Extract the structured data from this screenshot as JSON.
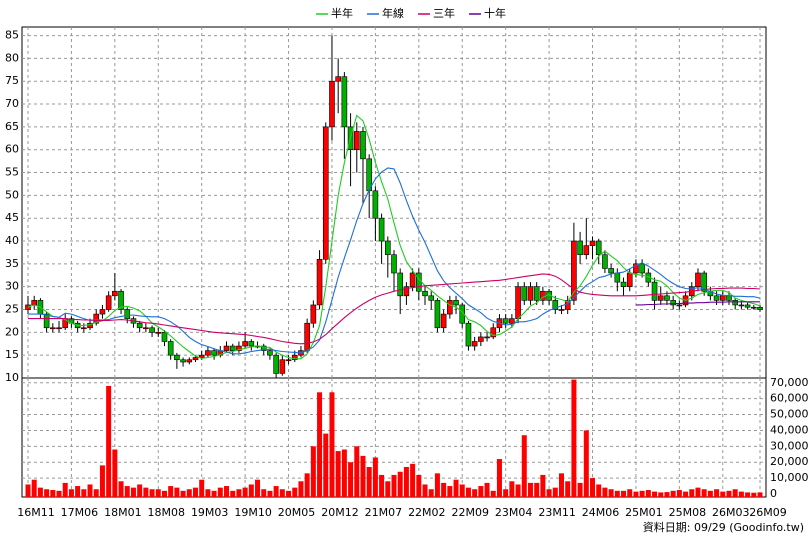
{
  "chart_data": {
    "type": "candlestick",
    "categories": [
      "16M11",
      null,
      null,
      null,
      null,
      null,
      null,
      "17M06",
      null,
      null,
      null,
      null,
      null,
      null,
      "18M01",
      null,
      null,
      null,
      null,
      null,
      null,
      "18M08",
      null,
      null,
      null,
      null,
      null,
      null,
      "19M03",
      null,
      null,
      null,
      null,
      null,
      null,
      "19M10",
      null,
      null,
      null,
      null,
      null,
      null,
      "20M05",
      null,
      null,
      null,
      null,
      null,
      null,
      "20M12",
      null,
      null,
      null,
      null,
      null,
      null,
      "21M07",
      null,
      null,
      null,
      null,
      null,
      null,
      "22M02",
      null,
      null,
      null,
      null,
      null,
      null,
      "22M09",
      null,
      null,
      null,
      null,
      null,
      null,
      "23M04",
      null,
      null,
      null,
      null,
      null,
      null,
      "23M11",
      null,
      null,
      null,
      null,
      null,
      null,
      "24M06",
      null,
      null,
      null,
      null,
      null,
      null,
      "25M01",
      null,
      null,
      null,
      null,
      null,
      null,
      "25M08",
      null,
      null,
      null,
      null,
      null,
      null,
      "26M03",
      null,
      null,
      null,
      null,
      null,
      "26M09"
    ],
    "ohlc": [
      [
        25,
        28,
        24,
        26
      ],
      [
        26,
        28,
        25,
        27
      ],
      [
        27,
        27.5,
        23,
        24
      ],
      [
        24,
        24.5,
        20,
        21
      ],
      [
        21,
        22,
        20,
        21
      ],
      [
        21,
        22.5,
        20,
        21
      ],
      [
        21,
        24,
        20.5,
        23
      ],
      [
        23,
        23.5,
        21,
        22
      ],
      [
        22,
        22.5,
        20,
        21
      ],
      [
        21,
        22,
        20,
        21
      ],
      [
        21,
        23,
        20.5,
        22
      ],
      [
        22,
        25,
        21.5,
        24
      ],
      [
        24,
        26,
        23,
        25
      ],
      [
        25,
        29,
        24.5,
        28
      ],
      [
        28,
        33,
        27,
        29
      ],
      [
        29,
        29.5,
        24,
        25
      ],
      [
        25,
        25.5,
        22,
        23
      ],
      [
        23,
        23.5,
        21,
        22
      ],
      [
        22,
        22.5,
        20,
        21
      ],
      [
        21,
        22,
        20,
        21
      ],
      [
        21,
        21.5,
        19,
        20
      ],
      [
        20,
        21,
        19,
        20
      ],
      [
        20,
        20.5,
        17,
        18
      ],
      [
        18,
        18.5,
        14,
        15
      ],
      [
        15,
        15.5,
        12,
        14
      ],
      [
        14,
        14.5,
        12.5,
        13.5
      ],
      [
        13.5,
        14.5,
        13,
        14
      ],
      [
        14,
        15,
        13.5,
        14.5
      ],
      [
        14.5,
        16,
        14,
        15
      ],
      [
        15,
        17,
        14.5,
        16
      ],
      [
        16,
        16.5,
        14,
        15
      ],
      [
        15,
        17,
        14.5,
        16
      ],
      [
        16,
        18,
        15.5,
        17
      ],
      [
        17,
        17.5,
        15,
        16
      ],
      [
        16,
        18,
        15.5,
        17
      ],
      [
        17,
        20,
        16.5,
        18
      ],
      [
        18,
        18.5,
        16,
        17
      ],
      [
        17,
        18,
        16.5,
        17
      ],
      [
        17,
        17.5,
        15,
        16
      ],
      [
        16,
        16.5,
        14,
        15
      ],
      [
        15,
        15.5,
        10,
        11
      ],
      [
        11,
        15,
        10.5,
        14
      ],
      [
        14,
        15,
        13,
        14
      ],
      [
        14,
        16,
        13.5,
        15
      ],
      [
        15,
        17,
        14.5,
        16
      ],
      [
        16,
        23,
        15.5,
        22
      ],
      [
        22,
        27,
        21,
        26
      ],
      [
        26,
        38,
        25,
        36
      ],
      [
        36,
        66,
        35,
        65
      ],
      [
        65,
        85,
        62,
        75
      ],
      [
        75,
        80,
        68,
        76
      ],
      [
        76,
        77,
        58,
        65
      ],
      [
        65,
        68,
        52,
        60
      ],
      [
        60,
        66,
        55,
        64
      ],
      [
        64,
        65,
        48,
        58
      ],
      [
        58,
        59,
        45,
        51
      ],
      [
        51,
        52,
        40,
        45
      ],
      [
        45,
        46,
        35,
        40
      ],
      [
        40,
        41,
        32,
        37
      ],
      [
        37,
        38,
        29,
        33
      ],
      [
        33,
        34,
        24,
        28
      ],
      [
        28,
        31,
        26,
        30
      ],
      [
        30,
        34,
        29,
        33
      ],
      [
        33,
        34,
        27,
        29
      ],
      [
        29,
        30,
        26,
        28
      ],
      [
        28,
        29,
        25,
        27
      ],
      [
        27,
        27.5,
        20,
        21
      ],
      [
        21,
        25,
        20,
        24
      ],
      [
        24,
        28,
        23,
        27
      ],
      [
        27,
        28,
        24,
        26
      ],
      [
        26,
        26.5,
        21,
        22
      ],
      [
        22,
        22.5,
        16,
        17
      ],
      [
        17,
        19,
        16,
        18
      ],
      [
        18,
        20,
        17,
        19
      ],
      [
        19,
        20,
        18,
        19
      ],
      [
        19,
        22,
        18.5,
        21
      ],
      [
        21,
        24,
        20,
        23
      ],
      [
        23,
        24,
        21,
        22
      ],
      [
        22,
        24,
        21,
        23
      ],
      [
        23,
        31,
        22,
        30
      ],
      [
        30,
        31,
        26,
        27
      ],
      [
        27,
        31,
        26,
        30
      ],
      [
        30,
        31,
        26,
        27
      ],
      [
        27,
        30,
        26,
        29
      ],
      [
        29,
        29.5,
        26,
        27
      ],
      [
        27,
        28,
        24,
        25
      ],
      [
        25,
        26,
        24,
        25
      ],
      [
        25,
        28,
        24,
        27
      ],
      [
        27,
        44,
        26,
        40
      ],
      [
        40,
        42,
        35,
        37
      ],
      [
        37,
        45,
        36,
        39
      ],
      [
        39,
        41,
        36,
        40
      ],
      [
        40,
        40.5,
        35,
        37
      ],
      [
        37,
        38,
        33,
        34
      ],
      [
        34,
        35,
        32,
        33
      ],
      [
        33,
        34,
        29,
        31
      ],
      [
        31,
        32,
        28,
        30
      ],
      [
        30,
        34,
        29,
        33
      ],
      [
        33,
        36,
        32,
        35
      ],
      [
        35,
        36,
        32,
        33
      ],
      [
        33,
        34,
        30,
        31
      ],
      [
        31,
        32,
        25,
        27
      ],
      [
        27,
        30,
        26,
        28
      ],
      [
        28,
        29,
        26,
        27
      ],
      [
        27,
        28,
        25,
        26
      ],
      [
        26,
        27,
        25,
        26
      ],
      [
        26,
        29,
        25.5,
        28
      ],
      [
        28,
        31,
        27,
        30
      ],
      [
        30,
        34,
        29,
        33
      ],
      [
        33,
        33.5,
        28,
        29
      ],
      [
        29,
        30,
        27,
        28
      ],
      [
        28,
        29,
        26,
        27
      ],
      [
        27,
        29,
        26,
        28
      ],
      [
        28,
        29,
        26,
        27
      ],
      [
        27,
        27.5,
        25,
        26
      ],
      [
        26,
        27,
        25,
        26
      ],
      [
        26,
        26.5,
        25,
        25.5
      ],
      [
        25.5,
        26,
        25,
        25.5
      ],
      [
        25.5,
        26,
        24.5,
        25
      ]
    ],
    "up_color": "#ff0000",
    "down_color": "#00b000",
    "ylim": [
      10,
      86
    ],
    "yticks": [
      10,
      15,
      20,
      25,
      30,
      35,
      40,
      45,
      50,
      55,
      60,
      65,
      70,
      75,
      80,
      85
    ],
    "grid": true,
    "series": [
      {
        "name": "半年",
        "color": "#22cc22",
        "values": [
          25.5,
          26,
          25.5,
          24.5,
          23.5,
          23.3,
          22.8,
          22,
          21.5,
          21.5,
          21.7,
          22.2,
          22.5,
          23.5,
          24.8,
          25.5,
          25.7,
          25.3,
          24.7,
          23.5,
          22,
          21.2,
          20.3,
          19.2,
          18,
          16.8,
          15.8,
          14.8,
          14.3,
          14.5,
          14.7,
          15.1,
          15.6,
          15.8,
          16.2,
          16.5,
          16.8,
          17,
          16.8,
          16.7,
          15.7,
          15,
          14.5,
          14.2,
          14.2,
          15.3,
          17.8,
          21.5,
          30,
          40,
          50,
          57.2,
          62.8,
          67.5,
          66.3,
          62.3,
          57.2,
          53,
          49.2,
          44,
          39,
          35.5,
          33.5,
          31.7,
          30.2,
          29.2,
          28,
          27,
          26,
          25.5,
          24.5,
          22.8,
          22.3,
          21.5,
          20.2,
          19.3,
          19.5,
          20.3,
          21.2,
          23,
          24.3,
          25.8,
          26.5,
          27.7,
          28.3,
          27.5,
          27.2,
          26.7,
          28.8,
          30.2,
          32.2,
          34.7,
          36.7,
          37.8,
          36.7,
          35.7,
          34.2,
          33,
          32.7,
          32.5,
          32.2,
          31.5,
          31.2,
          30.2,
          28.7,
          27.5,
          27,
          27.5,
          28.3,
          28.7,
          29,
          29.2,
          29.2,
          28.7,
          27.5,
          27,
          26.6,
          26.3,
          25.8
        ]
      },
      {
        "name": "年線",
        "color": "#1e6fd9",
        "values": [
          24,
          24,
          24,
          23.8,
          23.5,
          23.3,
          24.2,
          24,
          23.5,
          23,
          22.6,
          22.8,
          22.7,
          22.8,
          23.2,
          23.5,
          23.7,
          23.8,
          23.6,
          23.5,
          23.4,
          23.4,
          23,
          22.3,
          21.4,
          20.2,
          18.9,
          18,
          17.3,
          16.9,
          16.4,
          16,
          15.7,
          15.3,
          15.3,
          15.5,
          15.8,
          16,
          16.2,
          16.3,
          16,
          15.8,
          15.7,
          15.6,
          15.5,
          16,
          16.8,
          18.3,
          22.3,
          27.1,
          32.1,
          36.3,
          40.3,
          44.5,
          48.2,
          51.2,
          53.6,
          55.1,
          56,
          55.8,
          52.7,
          48.9,
          45.4,
          42.4,
          39.7,
          36.6,
          33.5,
          31.3,
          29.8,
          28.6,
          27.4,
          26,
          25.2,
          24.3,
          23.1,
          22.4,
          22,
          21.6,
          21.8,
          22.3,
          22.3,
          22.6,
          23,
          24,
          24.8,
          25.3,
          25.8,
          26.3,
          27.7,
          29,
          30.3,
          31.1,
          32,
          32.3,
          32.8,
          33,
          33.2,
          33.9,
          34.7,
          35.2,
          34.5,
          33.6,
          32.7,
          31.6,
          30.7,
          30,
          29.6,
          29.5,
          29.8,
          29.5,
          28.9,
          28.4,
          28.1,
          28.1,
          27.9,
          27.9,
          27.8,
          27.8,
          27.5
        ]
      },
      {
        "name": "三年",
        "color": "#cc0066",
        "values": [
          23,
          23,
          23,
          23,
          23,
          23,
          23,
          22.8,
          22.8,
          22.7,
          22.7,
          22.6,
          22.6,
          22.6,
          22.7,
          22.8,
          22.7,
          22.5,
          22.3,
          22.1,
          22,
          21.8,
          21.6,
          21.4,
          21.2,
          21,
          20.8,
          20.6,
          20.4,
          20.2,
          20,
          19.9,
          19.8,
          19.7,
          19.6,
          19.5,
          19.3,
          19.1,
          18.9,
          18.6,
          18.3,
          18,
          17.8,
          17.6,
          17.5,
          17.6,
          17.9,
          18.5,
          19.5,
          20.8,
          22,
          23.2,
          24.3,
          25.3,
          26.2,
          27,
          27.7,
          28.2,
          28.6,
          29,
          29.3,
          29.6,
          29.8,
          30,
          30.2,
          30.3,
          30.4,
          30.5,
          30.6,
          30.7,
          30.8,
          30.9,
          31,
          31.1,
          31.2,
          31.3,
          31.4,
          31.6,
          31.8,
          32,
          32.2,
          32.4,
          32.6,
          32.8,
          32.7,
          32.3,
          31.5,
          30.5,
          29.5,
          28.8,
          28.5,
          28.3,
          28.2,
          28.1,
          28,
          28,
          28,
          28,
          28,
          28.1,
          28.2,
          28.3,
          28.4,
          28.5,
          28.6,
          28.7,
          28.8,
          29,
          29.2,
          29.4,
          29.5,
          29.6,
          29.6,
          29.7,
          29.7,
          29.7,
          29.6,
          29.6,
          29.5
        ]
      },
      {
        "name": "十年",
        "color": "#660099",
        "values": [
          null,
          null,
          null,
          null,
          null,
          null,
          null,
          null,
          null,
          null,
          null,
          null,
          null,
          null,
          null,
          null,
          null,
          null,
          null,
          null,
          null,
          null,
          null,
          null,
          null,
          null,
          null,
          null,
          null,
          null,
          null,
          null,
          null,
          null,
          null,
          null,
          null,
          null,
          null,
          null,
          null,
          null,
          null,
          null,
          null,
          null,
          null,
          null,
          null,
          null,
          null,
          null,
          null,
          null,
          null,
          null,
          null,
          null,
          null,
          null,
          null,
          null,
          null,
          null,
          null,
          null,
          null,
          null,
          null,
          null,
          null,
          null,
          null,
          null,
          null,
          null,
          null,
          null,
          null,
          null,
          null,
          null,
          null,
          null,
          null,
          null,
          null,
          null,
          null,
          null,
          null,
          null,
          null,
          null,
          null,
          null,
          null,
          null,
          26,
          26,
          26.1,
          26.1,
          26.2,
          26.2,
          26.3,
          26.3,
          26.4,
          26.4,
          26.5,
          26.5,
          26.6,
          26.6,
          26.6,
          26.7,
          26.7,
          26.7,
          26.7,
          26.7,
          26.7
        ]
      }
    ],
    "volume": {
      "color": "#ff0000",
      "ylim": [
        0,
        73000
      ],
      "yticks": [
        0,
        {
          "value": 10000,
          "label": "10,000"
        },
        {
          "value": 20000,
          "label": "20,000"
        },
        {
          "value": 30000,
          "label": "30,000"
        },
        {
          "value": 40000,
          "label": "40,000"
        },
        {
          "value": 50000,
          "label": "50,000"
        },
        {
          "value": 60000,
          "label": "60,000"
        },
        {
          "value": 70000,
          "label": "70,000"
        }
      ],
      "values": [
        6000,
        9000,
        4000,
        3000,
        2500,
        2000,
        7000,
        3000,
        5000,
        3000,
        6000,
        3000,
        18000,
        68000,
        28000,
        8000,
        5000,
        4000,
        6000,
        4000,
        3000,
        3000,
        2000,
        5000,
        4000,
        2000,
        3000,
        4000,
        9000,
        3000,
        2000,
        4000,
        5000,
        2000,
        3000,
        4000,
        6000,
        9000,
        3000,
        2000,
        5000,
        3000,
        2000,
        4000,
        8000,
        13000,
        30000,
        64000,
        38000,
        64000,
        27000,
        28000,
        20000,
        30000,
        24000,
        17000,
        23000,
        12000,
        8000,
        12000,
        14000,
        17000,
        19000,
        12000,
        6000,
        3000,
        13000,
        7000,
        5000,
        9000,
        6000,
        4000,
        3000,
        5000,
        7000,
        2000,
        22000,
        3000,
        8000,
        6000,
        37000,
        7000,
        7000,
        12000,
        3000,
        4000,
        13000,
        8000,
        72000,
        7000,
        40000,
        10000,
        6000,
        4000,
        3000,
        2000,
        2000,
        3000,
        1500,
        2000,
        2500,
        1500,
        1000,
        1200,
        2000,
        2500,
        1500,
        3000,
        4000,
        3000,
        2000,
        3000,
        1500,
        2000,
        3000,
        1500,
        1000,
        800,
        1000
      ]
    },
    "footer": "資料日期: 09/29 (Goodinfo.tw)"
  }
}
